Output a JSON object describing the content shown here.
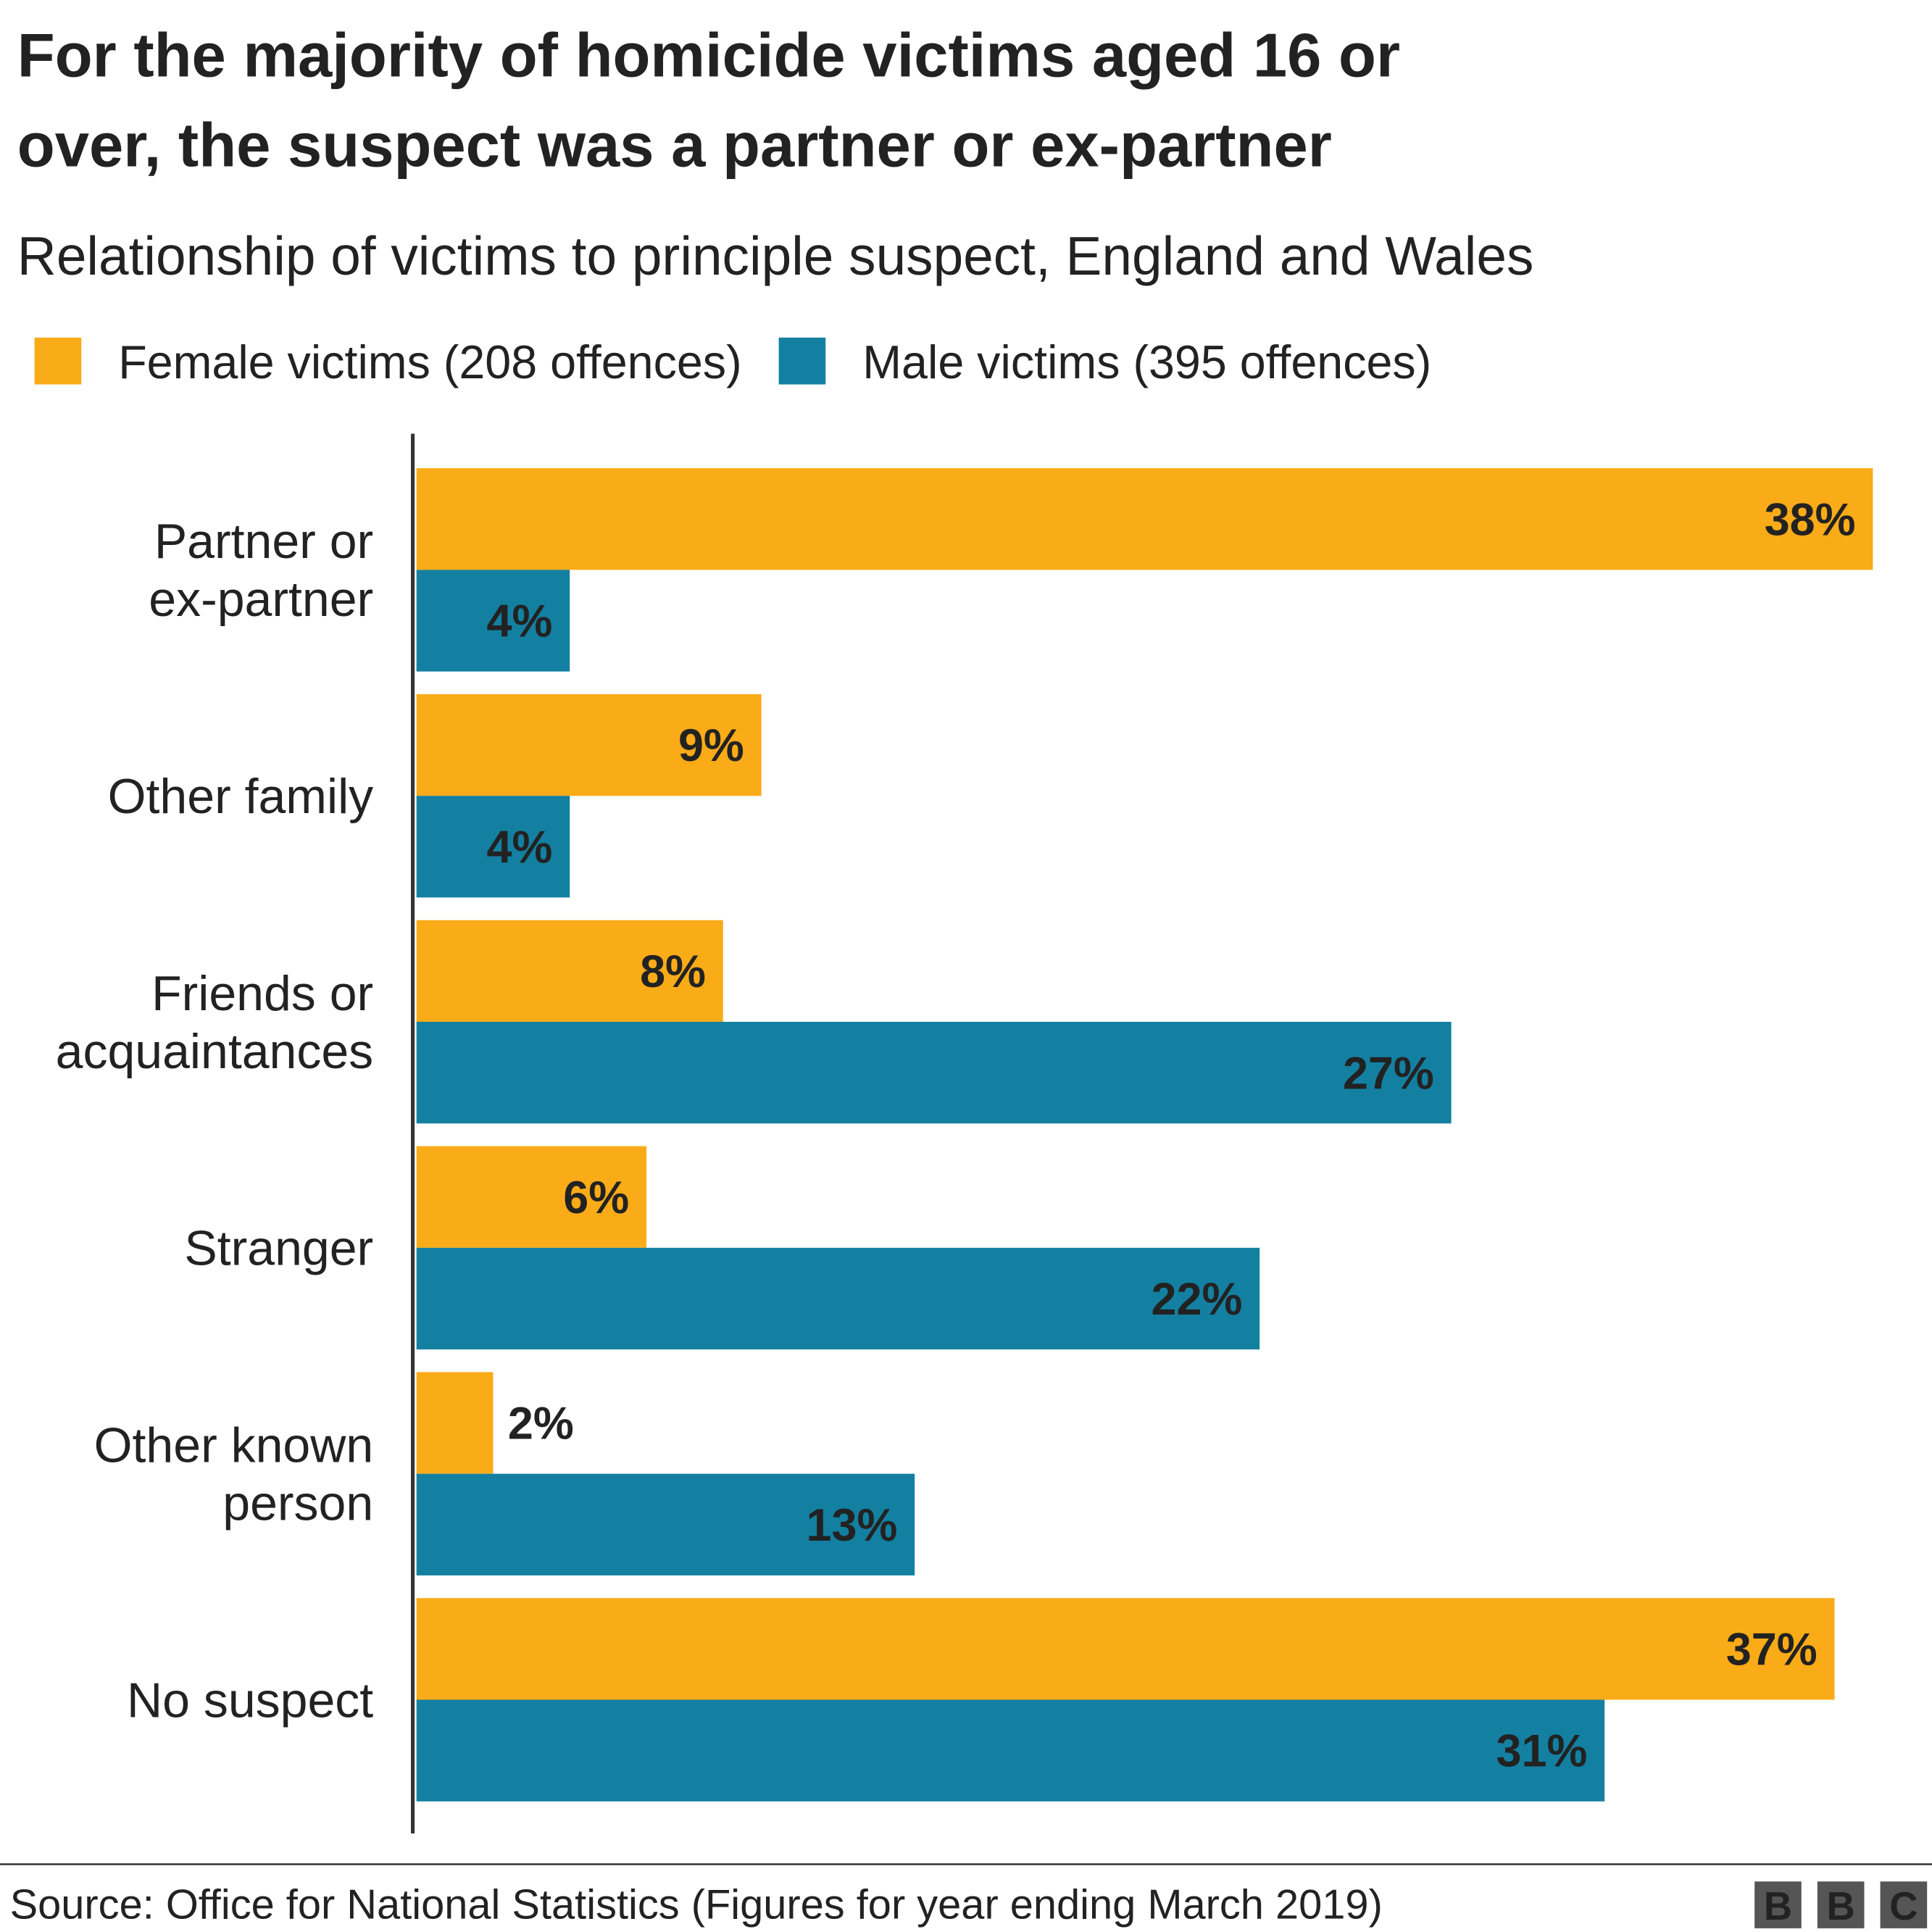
{
  "chart_data": {
    "type": "grouped-hbar",
    "title": [
      "For the majority of homicide victims aged 16 or",
      "over, the suspect was a partner or ex-partner"
    ],
    "subtitle": "Relationship of victims to principle suspect, England and Wales",
    "categories": [
      [
        "Partner or",
        "ex-partner"
      ],
      [
        "Other family"
      ],
      [
        "Friends or",
        "acquaintances"
      ],
      [
        "Stranger"
      ],
      [
        "Other known",
        "person"
      ],
      [
        "No suspect"
      ]
    ],
    "series": [
      {
        "name": "Female victims (208 offences)",
        "color": "#faab18",
        "label_color": "#000000",
        "values": [
          38,
          9,
          8,
          6,
          2,
          37
        ],
        "value_labels": [
          "38%",
          "9%",
          "8%",
          "6%",
          "2%",
          "37%"
        ]
      },
      {
        "name": "Male victims (395 offences)",
        "color": "#1380a1",
        "label_color": "#ffffff",
        "values": [
          4,
          4,
          27,
          22,
          13,
          31
        ],
        "value_labels": [
          "4%",
          "4%",
          "27%",
          "22%",
          "13%",
          "31%"
        ]
      }
    ],
    "source": "Source: Office for National Statistics (Figures for year ending March 2019)",
    "logo": [
      "B",
      "B",
      "C"
    ]
  }
}
